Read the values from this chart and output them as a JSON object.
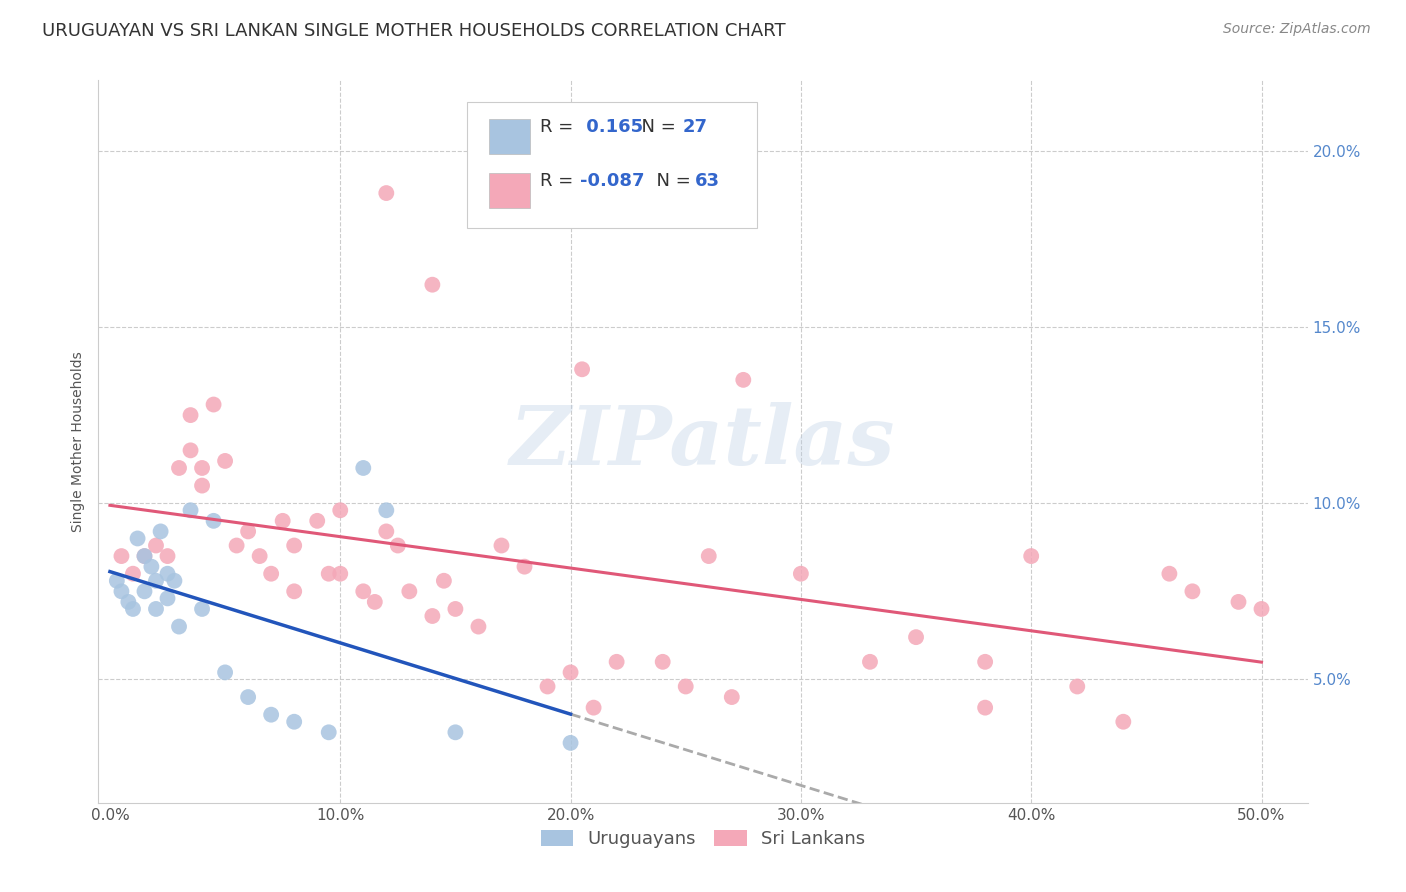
{
  "title": "URUGUAYAN VS SRI LANKAN SINGLE MOTHER HOUSEHOLDS CORRELATION CHART",
  "source": "Source: ZipAtlas.com",
  "ylabel": "Single Mother Households",
  "xlabel_ticks": [
    "0.0%",
    "10.0%",
    "20.0%",
    "30.0%",
    "40.0%",
    "50.0%"
  ],
  "xlabel_vals": [
    0,
    10,
    20,
    30,
    40,
    50
  ],
  "ylabel_ticks": [
    "5.0%",
    "10.0%",
    "15.0%",
    "20.0%"
  ],
  "ylabel_vals": [
    5,
    10,
    15,
    20
  ],
  "xlim": [
    -0.5,
    52
  ],
  "ylim": [
    1.5,
    22
  ],
  "watermark_text": "ZIPatlas",
  "uruguayan_color": "#a8c4e0",
  "srilanka_color": "#f4a8b8",
  "uruguayan_R": 0.165,
  "uruguayan_N": 27,
  "srilanka_R": -0.087,
  "srilanka_N": 63,
  "uruguayan_line_color": "#2255bb",
  "uruguayan_line_ext_color": "#aaaaaa",
  "srilanka_line_color": "#e05878",
  "grid_color": "#cccccc",
  "background_color": "#ffffff",
  "uruguayan_x": [
    0.3,
    0.5,
    0.8,
    1.0,
    1.2,
    1.5,
    1.5,
    1.8,
    2.0,
    2.0,
    2.2,
    2.5,
    2.5,
    2.8,
    3.0,
    3.5,
    4.0,
    4.5,
    5.0,
    6.0,
    7.0,
    8.0,
    9.5,
    11.0,
    12.0,
    15.0,
    20.0
  ],
  "uruguayan_y": [
    7.8,
    7.5,
    7.2,
    7.0,
    9.0,
    8.5,
    7.5,
    8.2,
    7.8,
    7.0,
    9.2,
    8.0,
    7.3,
    7.8,
    6.5,
    9.8,
    7.0,
    9.5,
    5.2,
    4.5,
    4.0,
    3.8,
    3.5,
    11.0,
    9.8,
    3.5,
    3.2
  ],
  "srilanka_x": [
    0.5,
    1.0,
    1.5,
    2.0,
    2.5,
    3.0,
    3.5,
    3.5,
    4.0,
    4.0,
    4.5,
    5.0,
    5.5,
    6.0,
    6.5,
    7.0,
    7.5,
    8.0,
    8.0,
    9.0,
    9.5,
    10.0,
    10.0,
    11.0,
    11.5,
    12.0,
    12.5,
    13.0,
    14.0,
    14.5,
    15.0,
    16.0,
    17.0,
    18.0,
    19.0,
    20.0,
    21.0,
    22.0,
    24.0,
    25.0,
    26.0,
    27.0,
    30.0,
    33.0,
    35.0,
    38.0,
    40.0,
    42.0,
    44.0,
    46.0,
    47.0,
    49.0,
    50.0
  ],
  "srilanka_y": [
    8.5,
    8.0,
    8.5,
    8.8,
    8.5,
    11.0,
    12.5,
    11.5,
    10.5,
    11.0,
    12.8,
    11.2,
    8.8,
    9.2,
    8.5,
    8.0,
    9.5,
    7.5,
    8.8,
    9.5,
    8.0,
    9.8,
    8.0,
    7.5,
    7.2,
    9.2,
    8.8,
    7.5,
    6.8,
    7.8,
    7.0,
    6.5,
    8.8,
    8.2,
    4.8,
    5.2,
    4.2,
    5.5,
    5.5,
    4.8,
    8.5,
    4.5,
    8.0,
    5.5,
    6.2,
    5.5,
    8.5,
    4.8,
    3.8,
    8.0,
    7.5,
    7.2,
    7.0
  ],
  "srilanka_outlier_x": [
    12.0,
    14.0,
    20.5,
    27.5,
    38.0
  ],
  "srilanka_outlier_y": [
    18.8,
    16.2,
    13.8,
    13.5,
    4.2
  ],
  "title_fontsize": 13,
  "axis_label_fontsize": 10,
  "tick_fontsize": 11,
  "legend_fontsize": 13,
  "source_fontsize": 10
}
